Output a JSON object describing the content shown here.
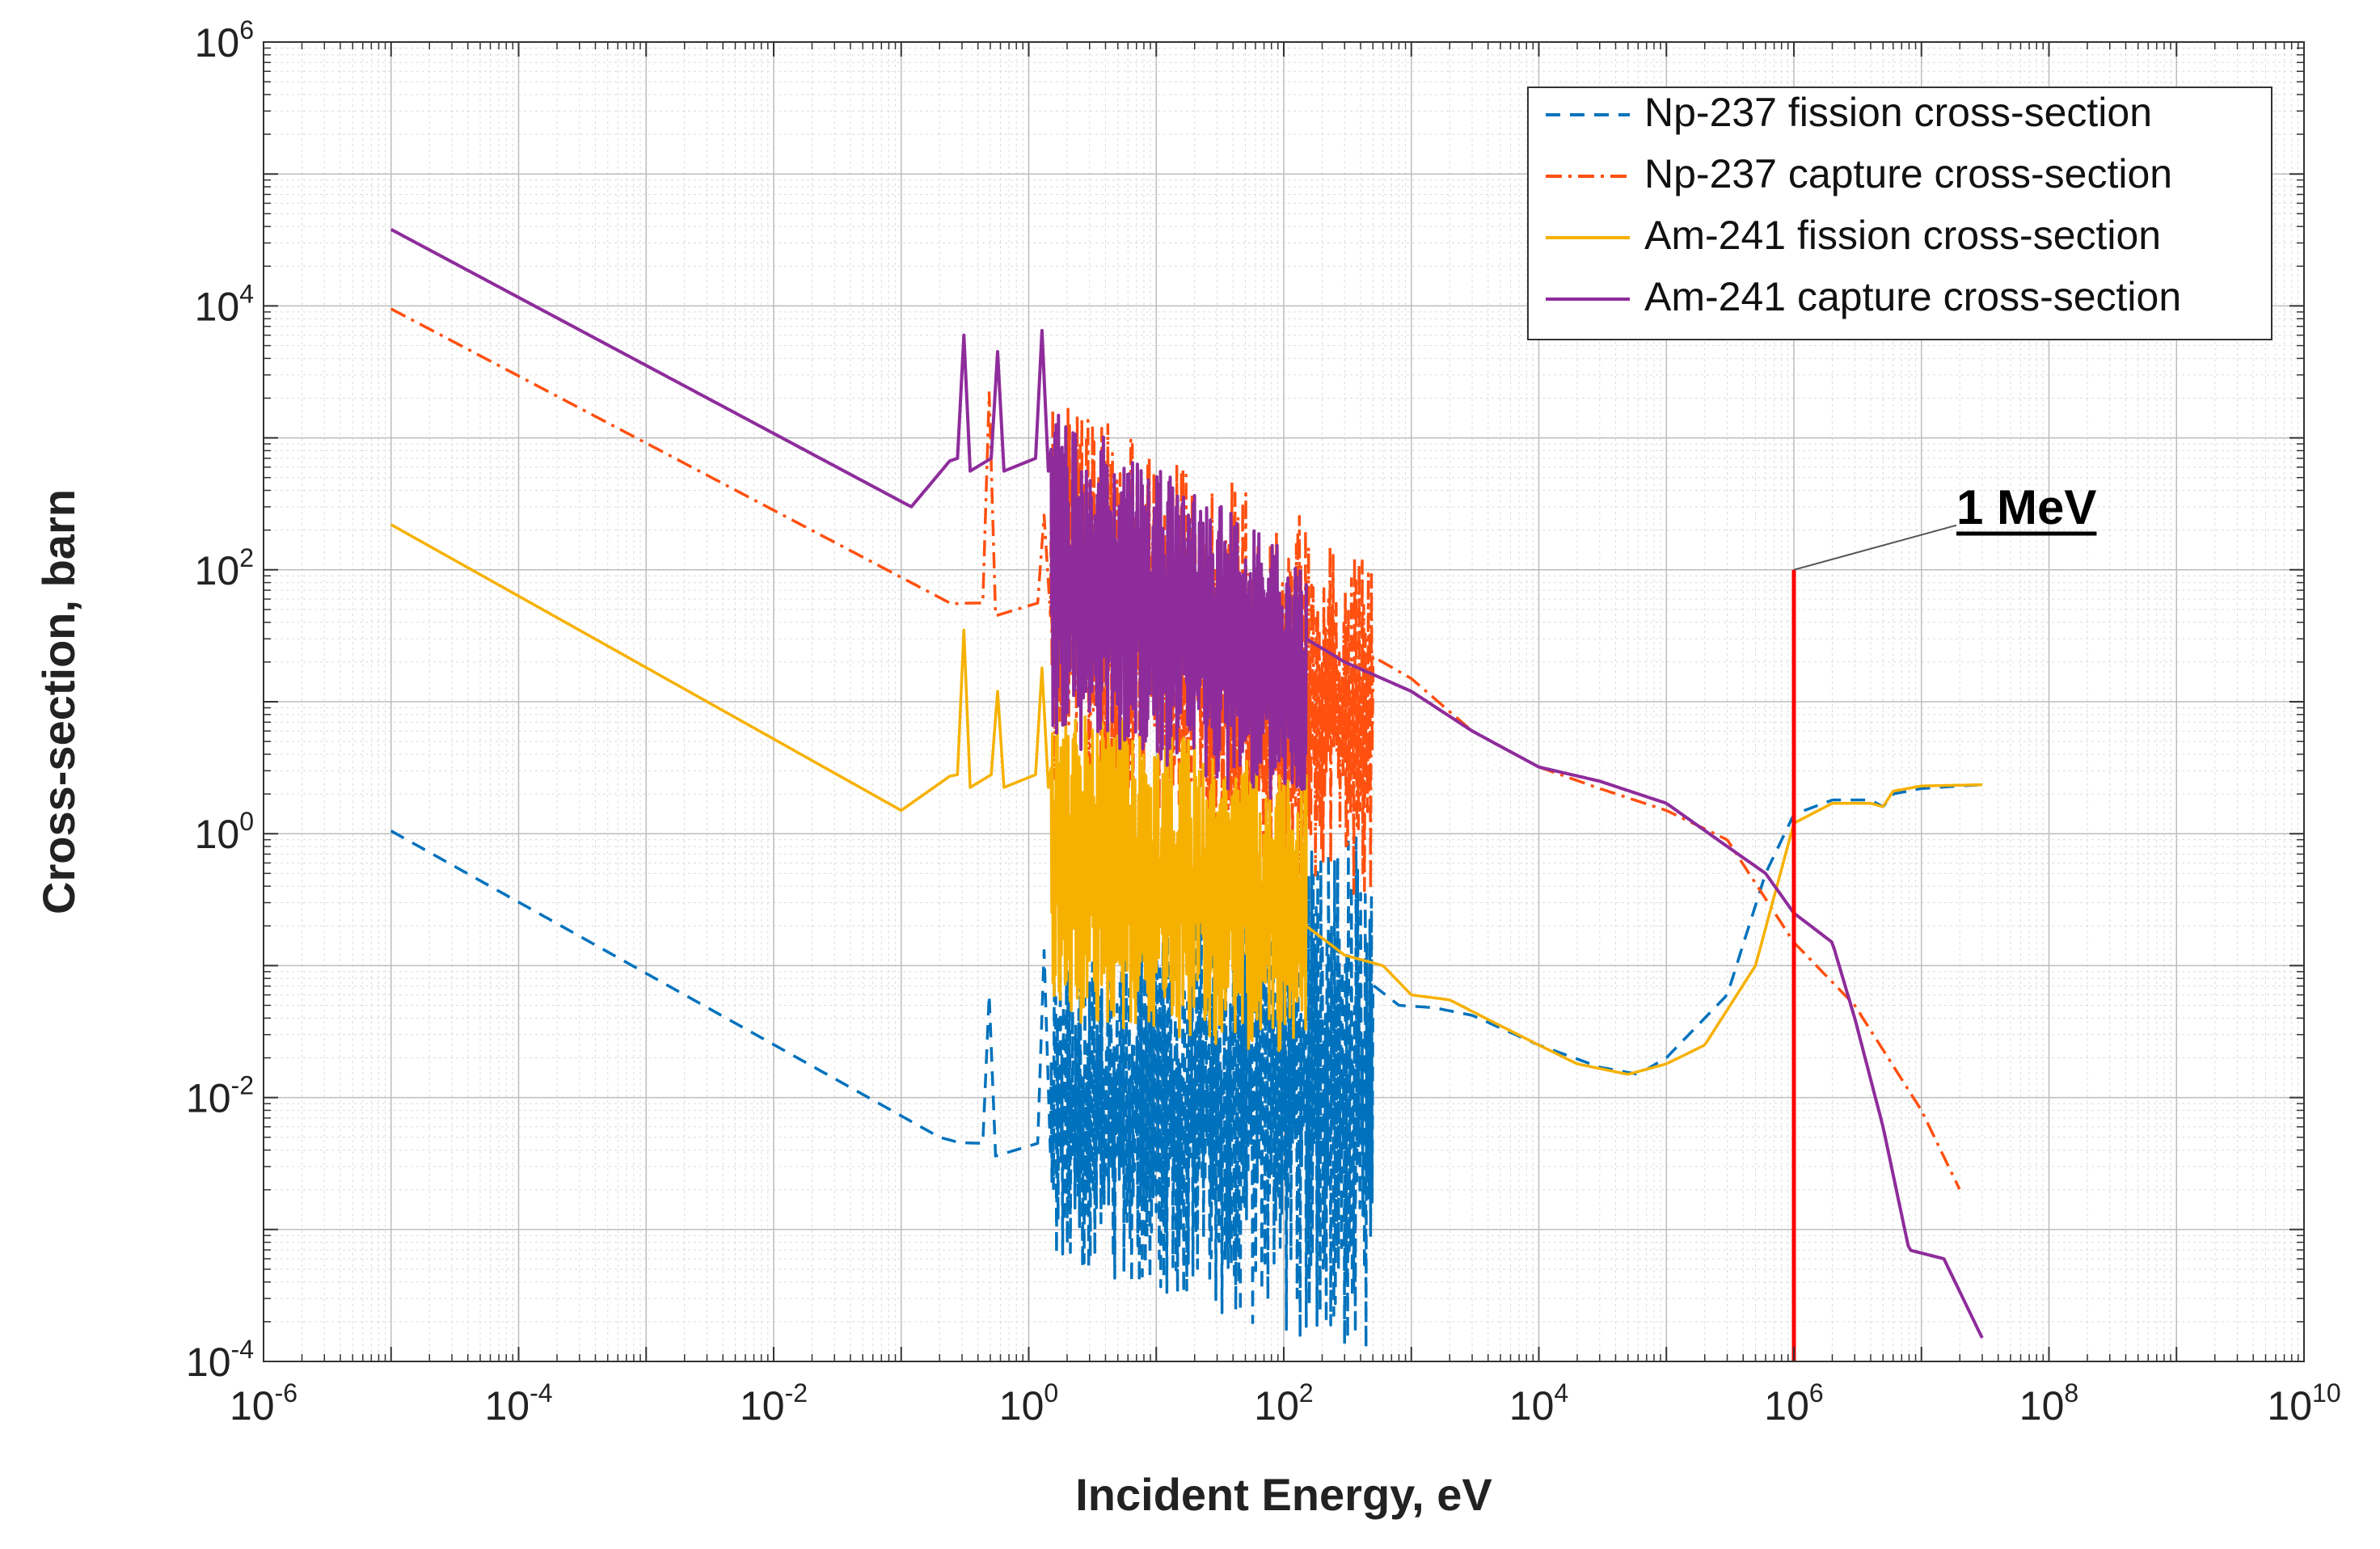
{
  "chart_data": {
    "type": "line",
    "title": "",
    "xlabel": "Incident Energy, eV",
    "ylabel": "Cross-section, barn",
    "xscale": "log",
    "yscale": "log",
    "xlim": [
      1e-06,
      10000000000.0
    ],
    "ylim": [
      0.0001,
      1000000.0
    ],
    "grid": true,
    "x_ticks": [
      {
        "exp": -6,
        "base": "10",
        "sup": "-6"
      },
      {
        "exp": -4,
        "base": "10",
        "sup": "-4"
      },
      {
        "exp": -2,
        "base": "10",
        "sup": "-2"
      },
      {
        "exp": 0,
        "base": "10",
        "sup": "0"
      },
      {
        "exp": 2,
        "base": "10",
        "sup": "2"
      },
      {
        "exp": 4,
        "base": "10",
        "sup": "4"
      },
      {
        "exp": 6,
        "base": "10",
        "sup": "6"
      },
      {
        "exp": 8,
        "base": "10",
        "sup": "8"
      },
      {
        "exp": 10,
        "base": "10",
        "sup": "10"
      }
    ],
    "y_ticks": [
      {
        "exp": -4,
        "base": "10",
        "sup": "-4"
      },
      {
        "exp": -2,
        "base": "10",
        "sup": "-2"
      },
      {
        "exp": 0,
        "base": "10",
        "sup": "0"
      },
      {
        "exp": 2,
        "base": "10",
        "sup": "2"
      },
      {
        "exp": 4,
        "base": "10",
        "sup": "4"
      },
      {
        "exp": 6,
        "base": "10",
        "sup": "6"
      }
    ],
    "legend_position": "top-right",
    "series": [
      {
        "name": "Np-237 fission cross-section",
        "color": "#0072BD",
        "style": "dashed",
        "smooth": [
          [
            1e-05,
            1.05
          ],
          [
            0.2,
            0.005
          ],
          [
            0.3,
            0.0045
          ]
        ],
        "resonances": [
          [
            0.49,
            0.06
          ],
          [
            1.32,
            0.13
          ]
        ],
        "resonance_band": {
          "from": 1.5,
          "to": 500,
          "low": [
            0.0006,
            0.0001
          ],
          "high": [
            0.1,
            1.2
          ]
        },
        "smooth_tail": [
          [
            800,
            0.05
          ],
          [
            1500,
            0.048
          ],
          [
            3000,
            0.042
          ],
          [
            10000,
            0.025
          ],
          [
            30000,
            0.017
          ],
          [
            60000,
            0.015
          ],
          [
            100000,
            0.02
          ],
          [
            300000,
            0.06
          ],
          [
            600000,
            0.5
          ],
          [
            1000000,
            1.4
          ],
          [
            2000000,
            1.8
          ],
          [
            4000000,
            1.8
          ],
          [
            5000000,
            1.6
          ],
          [
            6000000,
            2.0
          ],
          [
            10000000,
            2.2
          ],
          [
            20000000,
            2.3
          ],
          [
            30000000,
            2.35
          ]
        ]
      },
      {
        "name": "Np-237 capture cross-section",
        "color": "#FF5010",
        "style": "dashdot",
        "smooth": [
          [
            1e-05,
            9500
          ],
          [
            0.25,
            55
          ],
          [
            0.3,
            56
          ]
        ],
        "resonances": [
          [
            0.49,
            2200
          ],
          [
            1.32,
            260
          ]
        ],
        "resonance_band": {
          "from": 1.5,
          "to": 500,
          "low": [
            2.5,
            0.3
          ],
          "high": [
            2000,
            150
          ]
        },
        "smooth_tail": [
          [
            500,
            22
          ],
          [
            1000,
            15
          ],
          [
            3000,
            6
          ],
          [
            10000,
            3.2
          ],
          [
            30000,
            2.2
          ],
          [
            100000,
            1.5
          ],
          [
            300000,
            0.9
          ],
          [
            1000000,
            0.15
          ],
          [
            3000000,
            0.05
          ],
          [
            10000000,
            0.008
          ],
          [
            20000000,
            0.002
          ]
        ]
      },
      {
        "name": "Am-241 fission cross-section",
        "color": "#F6B100",
        "style": "solid",
        "smooth": [
          [
            1e-05,
            220
          ],
          [
            0.1,
            1.5
          ],
          [
            0.25,
            2.8
          ]
        ],
        "resonances": [
          [
            0.31,
            35
          ],
          [
            0.57,
            12
          ],
          [
            1.27,
            18
          ]
        ],
        "resonance_band": {
          "from": 1.5,
          "to": 150,
          "low": [
            0.04,
            0.02
          ],
          "high": [
            10,
            3
          ]
        },
        "smooth_tail": [
          [
            150,
            0.2
          ],
          [
            300,
            0.12
          ],
          [
            600,
            0.1
          ],
          [
            1000,
            0.06
          ],
          [
            2000,
            0.055
          ],
          [
            5000,
            0.035
          ],
          [
            10000,
            0.025
          ],
          [
            20000,
            0.018
          ],
          [
            50000,
            0.015
          ],
          [
            100000,
            0.018
          ],
          [
            200000,
            0.025
          ],
          [
            500000,
            0.1
          ],
          [
            1000000,
            1.2
          ],
          [
            2000000,
            1.7
          ],
          [
            4000000,
            1.7
          ],
          [
            5000000,
            1.6
          ],
          [
            6000000,
            2.1
          ],
          [
            10000000,
            2.3
          ],
          [
            30000000,
            2.35
          ]
        ]
      },
      {
        "name": "Am-241 capture cross-section",
        "color": "#8E2C9B",
        "style": "solid",
        "smooth": [
          [
            1e-05,
            38000
          ],
          [
            0.12,
            300
          ],
          [
            0.25,
            700
          ]
        ],
        "resonances": [
          [
            0.31,
            6000
          ],
          [
            0.57,
            4500
          ],
          [
            1.27,
            6500
          ]
        ],
        "resonance_band": {
          "from": 1.5,
          "to": 150,
          "low": [
            5,
            1.5
          ],
          "high": [
            2000,
            120
          ]
        },
        "smooth_tail": [
          [
            150,
            30
          ],
          [
            300,
            20
          ],
          [
            1000,
            12
          ],
          [
            3000,
            6
          ],
          [
            10000,
            3.2
          ],
          [
            30000,
            2.5
          ],
          [
            100000,
            1.7
          ],
          [
            300000,
            0.8
          ],
          [
            600000,
            0.5
          ],
          [
            1000000,
            0.25
          ],
          [
            2000000,
            0.15
          ],
          [
            3000000,
            0.04
          ],
          [
            5000000,
            0.006
          ],
          [
            8000000,
            0.0007
          ],
          [
            15000000,
            0.0006
          ],
          [
            30000000,
            0.00015
          ]
        ]
      }
    ],
    "annotation": {
      "label": "1 MeV",
      "x": 1000000,
      "y_top": 100,
      "color": "#FF0000"
    }
  }
}
